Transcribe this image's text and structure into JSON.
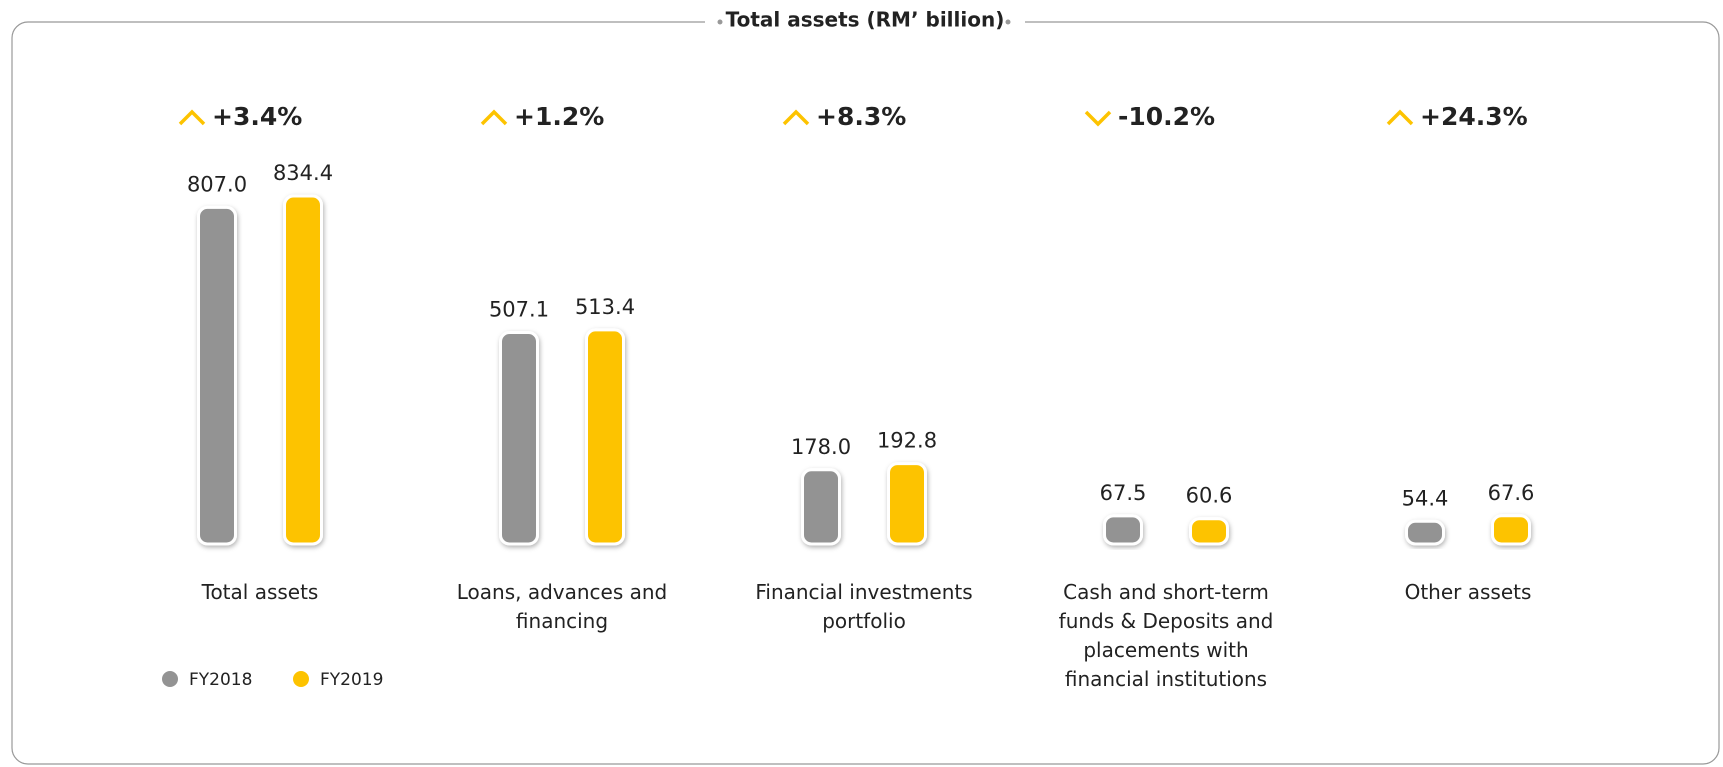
{
  "chart_data": {
    "type": "bar",
    "title": "Total assets (RM’ billion)",
    "categories": [
      "Total assets",
      "Loans, advances and financing",
      "Financial investments portfolio",
      "Cash and short-term funds & Deposits and placements with financial institutions",
      "Other assets"
    ],
    "series": [
      {
        "name": "FY2018",
        "color": "#939393",
        "values": [
          807.0,
          507.1,
          178.0,
          67.5,
          54.4
        ],
        "value_labels": [
          "807.0",
          "507.1",
          "178.0",
          "67.5",
          "54.4"
        ]
      },
      {
        "name": "FY2019",
        "color": "#fdc300",
        "values": [
          834.4,
          513.4,
          192.8,
          60.6,
          67.6
        ],
        "value_labels": [
          "834.4",
          "513.4",
          "192.8",
          "60.6",
          "67.6"
        ]
      }
    ],
    "changes": {
      "values": [
        3.4,
        1.2,
        8.3,
        -10.2,
        24.3
      ],
      "value_labels": [
        "+3.4%",
        "+1.2%",
        "+8.3%",
        "-10.2%",
        "+24.3%"
      ],
      "color": "#fdc300"
    }
  }
}
